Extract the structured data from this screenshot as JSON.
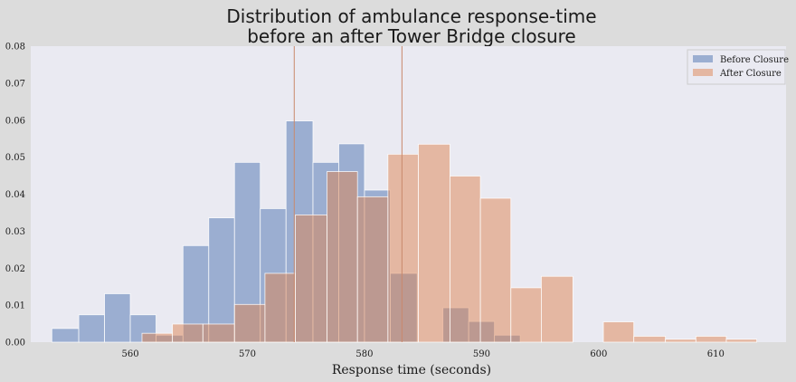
{
  "chart_data": {
    "type": "bar",
    "title_lines": [
      "Distribution of ambulance response-time",
      "before an after Tower Bridge closure"
    ],
    "xlabel": "Response time (seconds)",
    "ylabel": "",
    "xlim": [
      551.5,
      616
    ],
    "ylim": [
      0,
      0.08
    ],
    "grid": false,
    "legend_position": "top-right",
    "x_ticks": [
      560,
      570,
      580,
      590,
      600,
      610
    ],
    "x_tick_labels": [
      "560",
      "570",
      "580",
      "590",
      "600",
      "610"
    ],
    "y_ticks": [
      0,
      0.01,
      0.02,
      0.03,
      0.04,
      0.05,
      0.06,
      0.07,
      0.08
    ],
    "y_tick_labels": [
      "0.00",
      "0.01",
      "0.02",
      "0.03",
      "0.04",
      "0.05",
      "0.06",
      "0.07",
      "0.08"
    ],
    "vertical_lines": [
      {
        "x": 574.0,
        "color": "#c9896b"
      },
      {
        "x": 583.2,
        "color": "#c9896b"
      }
    ],
    "series": [
      {
        "name": "Before Closure",
        "color": "#4c72b0",
        "opacity": 0.5,
        "bins": [
          {
            "x0": 553.3,
            "x1": 555.6,
            "y": 0.0037
          },
          {
            "x0": 555.6,
            "x1": 557.8,
            "y": 0.0074
          },
          {
            "x0": 557.8,
            "x1": 560.0,
            "y": 0.0131
          },
          {
            "x0": 560.0,
            "x1": 562.2,
            "y": 0.0074
          },
          {
            "x0": 562.2,
            "x1": 564.5,
            "y": 0.0019
          },
          {
            "x0": 564.5,
            "x1": 566.7,
            "y": 0.0261
          },
          {
            "x0": 566.7,
            "x1": 568.9,
            "y": 0.0336
          },
          {
            "x0": 568.9,
            "x1": 571.1,
            "y": 0.0486
          },
          {
            "x0": 571.1,
            "x1": 573.3,
            "y": 0.0361
          },
          {
            "x0": 573.3,
            "x1": 575.6,
            "y": 0.0598
          },
          {
            "x0": 575.6,
            "x1": 577.8,
            "y": 0.0486
          },
          {
            "x0": 577.8,
            "x1": 580.0,
            "y": 0.0536
          },
          {
            "x0": 580.0,
            "x1": 582.2,
            "y": 0.0411
          },
          {
            "x0": 582.2,
            "x1": 584.5,
            "y": 0.0186
          },
          {
            "x0": 584.5,
            "x1": 586.7,
            "y": 0.0
          },
          {
            "x0": 586.7,
            "x1": 588.9,
            "y": 0.0093
          },
          {
            "x0": 588.9,
            "x1": 591.1,
            "y": 0.0056
          },
          {
            "x0": 591.1,
            "x1": 593.3,
            "y": 0.0019
          }
        ]
      },
      {
        "name": "After Closure",
        "color": "#dd8452",
        "opacity": 0.5,
        "bins": [
          {
            "x0": 561.0,
            "x1": 563.6,
            "y": 0.0024
          },
          {
            "x0": 563.6,
            "x1": 566.2,
            "y": 0.0049
          },
          {
            "x0": 566.2,
            "x1": 568.9,
            "y": 0.0049
          },
          {
            "x0": 568.9,
            "x1": 571.5,
            "y": 0.0102
          },
          {
            "x0": 571.5,
            "x1": 574.1,
            "y": 0.0186
          },
          {
            "x0": 574.1,
            "x1": 576.8,
            "y": 0.0344
          },
          {
            "x0": 576.8,
            "x1": 579.4,
            "y": 0.0461
          },
          {
            "x0": 579.4,
            "x1": 582.0,
            "y": 0.0393
          },
          {
            "x0": 582.0,
            "x1": 584.6,
            "y": 0.0508
          },
          {
            "x0": 584.6,
            "x1": 587.3,
            "y": 0.0535
          },
          {
            "x0": 587.3,
            "x1": 589.9,
            "y": 0.0449
          },
          {
            "x0": 589.9,
            "x1": 592.5,
            "y": 0.0389
          },
          {
            "x0": 592.5,
            "x1": 595.1,
            "y": 0.0147
          },
          {
            "x0": 595.1,
            "x1": 597.8,
            "y": 0.0178
          },
          {
            "x0": 597.8,
            "x1": 600.4,
            "y": 0.0
          },
          {
            "x0": 600.4,
            "x1": 603.0,
            "y": 0.0055
          },
          {
            "x0": 603.0,
            "x1": 605.7,
            "y": 0.0016
          },
          {
            "x0": 605.7,
            "x1": 608.3,
            "y": 0.0008
          },
          {
            "x0": 608.3,
            "x1": 610.9,
            "y": 0.0016
          },
          {
            "x0": 610.9,
            "x1": 613.5,
            "y": 0.0008
          }
        ]
      }
    ],
    "plot_background": "#eaeaf2"
  }
}
